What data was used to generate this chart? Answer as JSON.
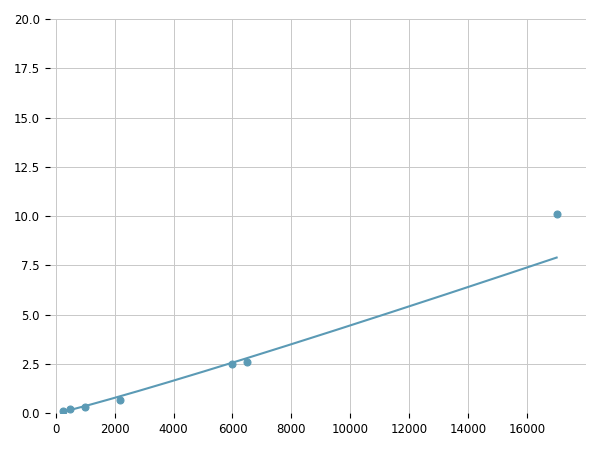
{
  "x_points": [
    250,
    500,
    1000,
    2200,
    6000,
    6500,
    17000
  ],
  "y_points": [
    0.1,
    0.2,
    0.3,
    0.7,
    2.5,
    2.6,
    10.1
  ],
  "marker_x": [
    250,
    500,
    1000,
    2200,
    6000,
    6500,
    17000
  ],
  "marker_y": [
    0.1,
    0.2,
    0.3,
    0.7,
    2.5,
    2.6,
    10.1
  ],
  "line_color": "#5b9ab5",
  "marker_color": "#5b9ab5",
  "marker_size": 5,
  "xlim": [
    -200,
    18000
  ],
  "ylim": [
    0,
    20.0
  ],
  "xticks": [
    0,
    2000,
    4000,
    6000,
    8000,
    10000,
    12000,
    14000,
    16000
  ],
  "yticks": [
    0.0,
    2.5,
    5.0,
    7.5,
    10.0,
    12.5,
    15.0,
    17.5,
    20.0
  ],
  "grid_color": "#c8c8c8",
  "background_color": "#ffffff",
  "figure_background": "#ffffff"
}
